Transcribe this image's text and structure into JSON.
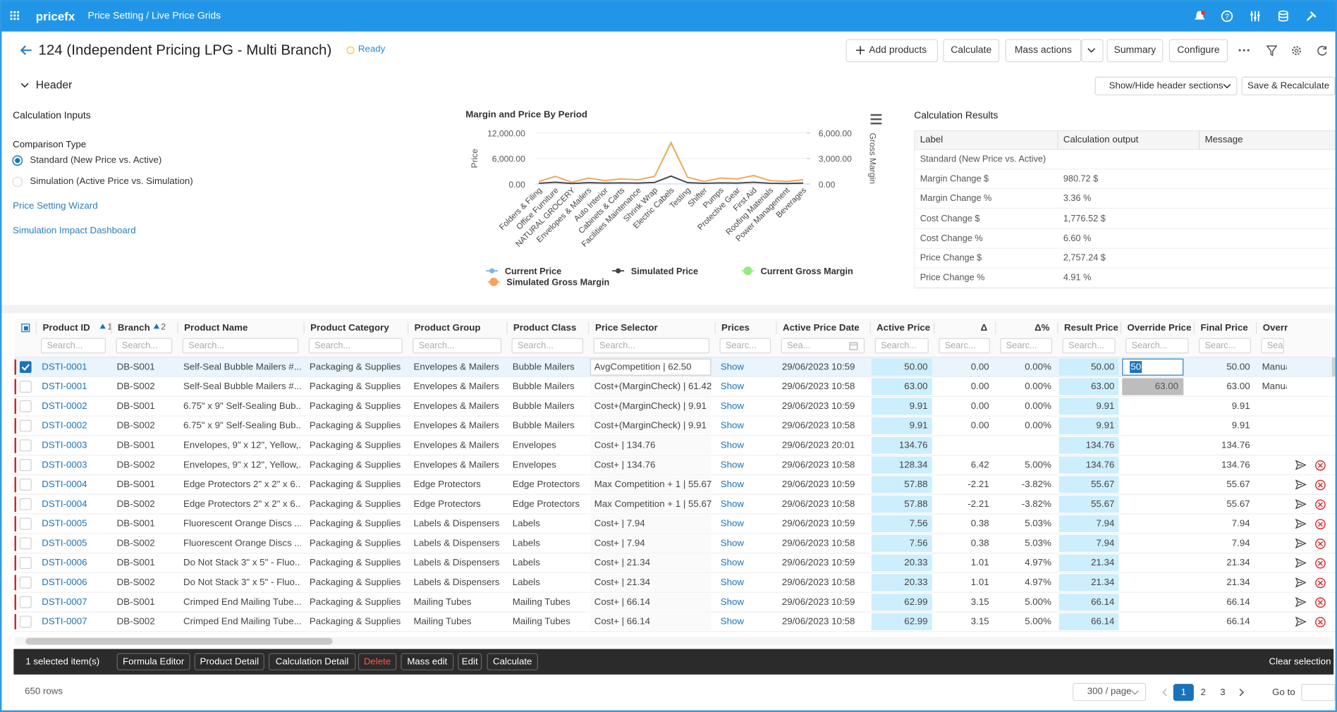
{
  "topbar": {
    "brand": "pricefx",
    "breadcrumb": "Price Setting / Live Price Grids"
  },
  "page": {
    "title": "124 (Independent Pricing LPG - Multi Branch)",
    "status": "Ready"
  },
  "toolbar": [
    "Add products",
    "Calculate",
    "Mass actions",
    "Summary",
    "Configure"
  ],
  "header": {
    "label": "Header",
    "show_hide": "Show/Hide header sections",
    "save": "Save & Recalculate"
  },
  "inputs": {
    "title": "Calculation Inputs",
    "comparison_label": "Comparison Type",
    "options": [
      "Standard (New Price vs. Active)",
      "Simulation (Active Price vs. Simulation)"
    ],
    "links": [
      "Price Setting Wizard",
      "Simulation Impact Dashboard"
    ]
  },
  "chart_data": {
    "type": "line",
    "title": "Margin and Price By Period",
    "y_label": "Price",
    "y2_label": "Gross Margin",
    "categories": [
      "Folders & Filing",
      "Office Furniture",
      "NATURAL GROCERY",
      "Envelopes & Mailers",
      "Auto Interior",
      "Cabinets & Carts",
      "Facilities Maintenance",
      "Shrink Wrap",
      "Electric Cabels",
      "Testing",
      "Shifter",
      "Pumps",
      "Protective Gear",
      "First Aid",
      "Roofing Materials",
      "Power Management",
      "Beverages"
    ],
    "series": [
      {
        "name": "Current Price",
        "color": "#7cb5ec",
        "values": [
          150,
          400,
          100,
          300,
          200,
          250,
          200,
          350,
          1800,
          300,
          150,
          250,
          200,
          400,
          150,
          100,
          200
        ]
      },
      {
        "name": "Simulated Price",
        "color": "#434348",
        "values": [
          160,
          420,
          110,
          310,
          210,
          260,
          210,
          360,
          1850,
          310,
          160,
          260,
          210,
          410,
          160,
          110,
          210
        ]
      },
      {
        "name": "Current Gross Margin",
        "color": "#90ed7d",
        "axis": "y2",
        "values": [
          300,
          900,
          200,
          700,
          400,
          600,
          500,
          900,
          4900,
          800,
          300,
          700,
          600,
          1000,
          400,
          300,
          500
        ]
      },
      {
        "name": "Simulated Gross Margin",
        "color": "#f7a35c",
        "axis": "y2",
        "values": [
          290,
          880,
          190,
          690,
          390,
          590,
          490,
          880,
          4800,
          790,
          290,
          690,
          590,
          980,
          390,
          290,
          490
        ]
      }
    ],
    "ylim": [
      0,
      12000
    ],
    "yticks": [
      {
        "value": 0,
        "label": "0.00"
      },
      {
        "value": 6000,
        "label": "6,000.00"
      },
      {
        "value": 12000,
        "label": "12,000.00"
      }
    ],
    "y2lim": [
      0,
      6000
    ],
    "y2ticks": [
      {
        "value": 0,
        "label": "0.00"
      },
      {
        "value": 3000,
        "label": "3,000.00"
      },
      {
        "value": 6000,
        "label": "6,000.00"
      }
    ]
  },
  "results": {
    "title": "Calculation Results",
    "columns": [
      "Label",
      "Calculation output",
      "Message"
    ],
    "rows": [
      [
        "Standard (New Price vs. Active)"
      ],
      [
        "Margin Change $",
        "980.72 $"
      ],
      [
        "Margin Change %",
        "3.36 %"
      ],
      [
        "Cost Change $",
        "1,776.52 $"
      ],
      [
        "Cost Change %",
        "6.60 %"
      ],
      [
        "Price Change $",
        "2,757.24 $"
      ],
      [
        "Price Change %",
        "4.91 %"
      ]
    ]
  },
  "grid": {
    "columns": [
      {
        "label": "Product ID",
        "sort": 1,
        "placeholder": "Search..."
      },
      {
        "label": "Branch",
        "sort": 2,
        "placeholder": "Search..."
      },
      {
        "label": "Product Name",
        "placeholder": "Search..."
      },
      {
        "label": "Product Category",
        "placeholder": "Search..."
      },
      {
        "label": "Product Group",
        "placeholder": "Search..."
      },
      {
        "label": "Product Class",
        "placeholder": "Search..."
      },
      {
        "label": "Price Selector",
        "placeholder": "Search..."
      },
      {
        "label": "Prices",
        "placeholder": "Searc..."
      },
      {
        "label": "Active Price Date",
        "placeholder": "Sea..."
      },
      {
        "label": "Active Price",
        "placeholder": "Search..."
      },
      {
        "label": "Δ",
        "placeholder": "Searc..."
      },
      {
        "label": "Δ%",
        "placeholder": "Searc..."
      },
      {
        "label": "Result Price",
        "placeholder": "Search..."
      },
      {
        "label": "Override Price",
        "placeholder": "Search..."
      },
      {
        "label": "Final Price",
        "placeholder": "Searc..."
      },
      {
        "label": "Overri...",
        "placeholder": "Sear"
      }
    ],
    "rows": [
      [
        "DSTI-0001",
        "DB-S001",
        "Self-Seal Bubble Mailers #...",
        "Packaging & Supplies",
        "Envelopes & Mailers",
        "Bubble Mailers",
        "AvgCompetition | 62.50",
        "Show",
        "29/06/2023 10:59",
        "50.00",
        "0.00",
        "0.00%",
        "50.00",
        "50",
        "50.00",
        "Manual"
      ],
      [
        "DSTI-0001",
        "DB-S002",
        "Self-Seal Bubble Mailers #...",
        "Packaging & Supplies",
        "Envelopes & Mailers",
        "Bubble Mailers",
        "Cost+(MarginCheck) | 61.42",
        "Show",
        "29/06/2023 10:58",
        "63.00",
        "0.00",
        "0.00%",
        "63.00",
        "63.00",
        "63.00",
        "Manual"
      ],
      [
        "DSTI-0002",
        "DB-S001",
        "6.75\" x 9\" Self-Sealing Bub...",
        "Packaging & Supplies",
        "Envelopes & Mailers",
        "Bubble Mailers",
        "Cost+(MarginCheck) | 9.91",
        "Show",
        "29/06/2023 10:59",
        "9.91",
        "0.00",
        "0.00%",
        "9.91",
        null,
        "9.91",
        null
      ],
      [
        "DSTI-0002",
        "DB-S002",
        "6.75\" x 9\" Self-Sealing Bub...",
        "Packaging & Supplies",
        "Envelopes & Mailers",
        "Bubble Mailers",
        "Cost+(MarginCheck) | 9.91",
        "Show",
        "29/06/2023 10:58",
        "9.91",
        "0.00",
        "0.00%",
        "9.91",
        null,
        "9.91",
        null
      ],
      [
        "DSTI-0003",
        "DB-S001",
        "Envelopes, 9\" x 12\", Yellow,...",
        "Packaging & Supplies",
        "Envelopes & Mailers",
        "Envelopes",
        "Cost+ | 134.76",
        "Show",
        "29/06/2023 20:01",
        "134.76",
        null,
        null,
        "134.76",
        null,
        "134.76",
        null
      ],
      [
        "DSTI-0003",
        "DB-S002",
        "Envelopes, 9\" x 12\", Yellow,...",
        "Packaging & Supplies",
        "Envelopes & Mailers",
        "Envelopes",
        "Cost+ | 134.76",
        "Show",
        "29/06/2023 10:58",
        "128.34",
        "6.42",
        "5.00%",
        "134.76",
        null,
        "134.76",
        null
      ],
      [
        "DSTI-0004",
        "DB-S001",
        "Edge Protectors 2\" x 2\" x 6...",
        "Packaging & Supplies",
        "Edge Protectors",
        "Edge Protectors",
        "Max Competition + 1 | 55.67",
        "Show",
        "29/06/2023 10:59",
        "57.88",
        "-2.21",
        "-3.82%",
        "55.67",
        null,
        "55.67",
        null
      ],
      [
        "DSTI-0004",
        "DB-S002",
        "Edge Protectors 2\" x 2\" x 6...",
        "Packaging & Supplies",
        "Edge Protectors",
        "Edge Protectors",
        "Max Competition + 1 | 55.67",
        "Show",
        "29/06/2023 10:58",
        "57.88",
        "-2.21",
        "-3.82%",
        "55.67",
        null,
        "55.67",
        null
      ],
      [
        "DSTI-0005",
        "DB-S001",
        "Fluorescent Orange Discs ...",
        "Packaging & Supplies",
        "Labels & Dispensers",
        "Labels",
        "Cost+ | 7.94",
        "Show",
        "29/06/2023 10:59",
        "7.56",
        "0.38",
        "5.03%",
        "7.94",
        null,
        "7.94",
        null
      ],
      [
        "DSTI-0005",
        "DB-S002",
        "Fluorescent Orange Discs ...",
        "Packaging & Supplies",
        "Labels & Dispensers",
        "Labels",
        "Cost+ | 7.94",
        "Show",
        "29/06/2023 10:58",
        "7.56",
        "0.38",
        "5.03%",
        "7.94",
        null,
        "7.94",
        null
      ],
      [
        "DSTI-0006",
        "DB-S001",
        "Do Not Stack 3\" x 5\" - Fluo...",
        "Packaging & Supplies",
        "Labels & Dispensers",
        "Labels",
        "Cost+ | 21.34",
        "Show",
        "29/06/2023 10:59",
        "20.33",
        "1.01",
        "4.97%",
        "21.34",
        null,
        "21.34",
        null
      ],
      [
        "DSTI-0006",
        "DB-S002",
        "Do Not Stack 3\" x 5\" - Fluo...",
        "Packaging & Supplies",
        "Labels & Dispensers",
        "Labels",
        "Cost+ | 21.34",
        "Show",
        "29/06/2023 10:58",
        "20.33",
        "1.01",
        "4.97%",
        "21.34",
        null,
        "21.34",
        null
      ],
      [
        "DSTI-0007",
        "DB-S001",
        "Crimped End Mailing Tube...",
        "Packaging & Supplies",
        "Mailing Tubes",
        "Mailing Tubes",
        "Cost+ | 66.14",
        "Show",
        "29/06/2023 10:59",
        "62.99",
        "3.15",
        "5.00%",
        "66.14",
        null,
        "66.14",
        null
      ],
      [
        "DSTI-0007",
        "DB-S002",
        "Crimped End Mailing Tube...",
        "Packaging & Supplies",
        "Mailing Tubes",
        "Mailing Tubes",
        "Cost+ | 66.14",
        "Show",
        "29/06/2023 10:58",
        "62.99",
        "3.15",
        "5.00%",
        "66.14",
        null,
        "66.14",
        null
      ]
    ]
  },
  "selection_bar": {
    "count": "1 selected item(s)",
    "actions": [
      "Formula Editor",
      "Product Detail",
      "Calculation Detail",
      "Delete",
      "Mass edit",
      "Edit",
      "Calculate"
    ],
    "clear": "Clear selection"
  },
  "footer": {
    "rows": "650 rows",
    "page_size": "300 / page",
    "pages": [
      1,
      2,
      3
    ],
    "goto": "Go to"
  }
}
